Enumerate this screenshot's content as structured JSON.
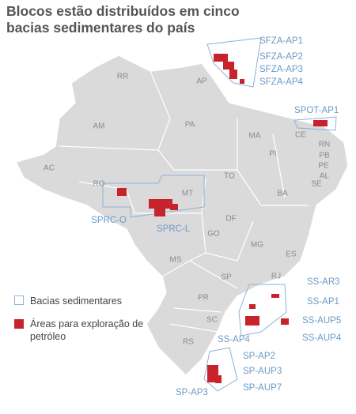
{
  "title": "Blocos estão distribuídos em cinco bacias sedimentares do país",
  "states": [
    "RR",
    "AP",
    "AM",
    "PA",
    "MA",
    "CE",
    "RN",
    "PB",
    "PE",
    "AL",
    "SE",
    "PI",
    "TO",
    "BA",
    "AC",
    "RO",
    "MT",
    "DF",
    "GO",
    "MG",
    "ES",
    "MS",
    "SP",
    "RJ",
    "PR",
    "SC",
    "RS"
  ],
  "blocks": [
    "SFZA-AP1",
    "SFZA-AP2",
    "SFZA-AP3",
    "SFZA-AP4",
    "SPOT-AP1",
    "SPRC-O",
    "SPRC-L",
    "SS-AR3",
    "SS-AP1",
    "SS-AUP5",
    "SS-AP4",
    "SS-AUP4",
    "SP-AP2",
    "SP-AUP3",
    "SP-AUP7",
    "SP-AP3"
  ],
  "legend": [
    "Bacias sedimentares",
    "Áreas para exploração de petróleo"
  ]
}
